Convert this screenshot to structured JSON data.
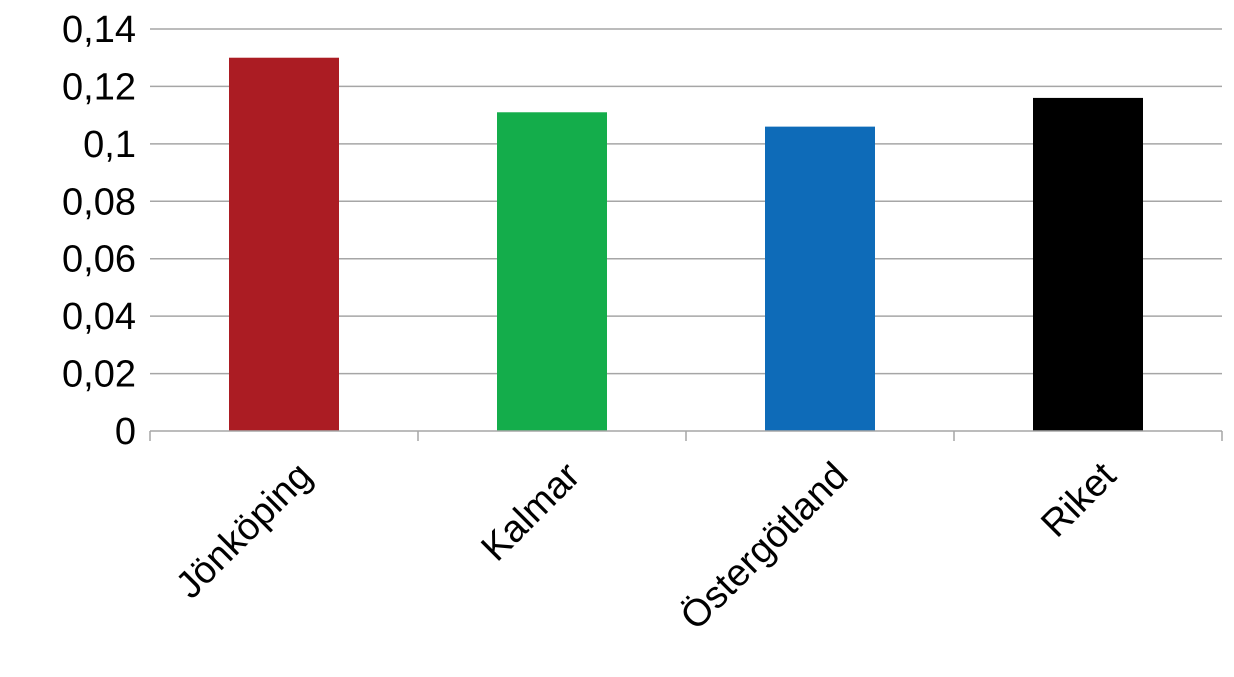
{
  "chart_data": {
    "type": "bar",
    "categories": [
      "Jönköping",
      "Kalmar",
      "Östergötland",
      "Riket"
    ],
    "values": [
      0.13,
      0.111,
      0.106,
      0.116
    ],
    "colors": [
      "#ab1c23",
      "#14ad4b",
      "#0e6bb8",
      "#000000"
    ],
    "title": "",
    "xlabel": "",
    "ylabel": "",
    "ylim": [
      0,
      0.14
    ],
    "yticks": [
      {
        "value": 0,
        "label": "0"
      },
      {
        "value": 0.02,
        "label": "0,02"
      },
      {
        "value": 0.04,
        "label": "0,04"
      },
      {
        "value": 0.06,
        "label": "0,06"
      },
      {
        "value": 0.08,
        "label": "0,08"
      },
      {
        "value": 0.1,
        "label": "0,1"
      },
      {
        "value": 0.12,
        "label": "0,12"
      },
      {
        "value": 0.14,
        "label": "0,14"
      }
    ],
    "grid": true,
    "legend": "none",
    "gridline_color": "#a6a6a6"
  }
}
